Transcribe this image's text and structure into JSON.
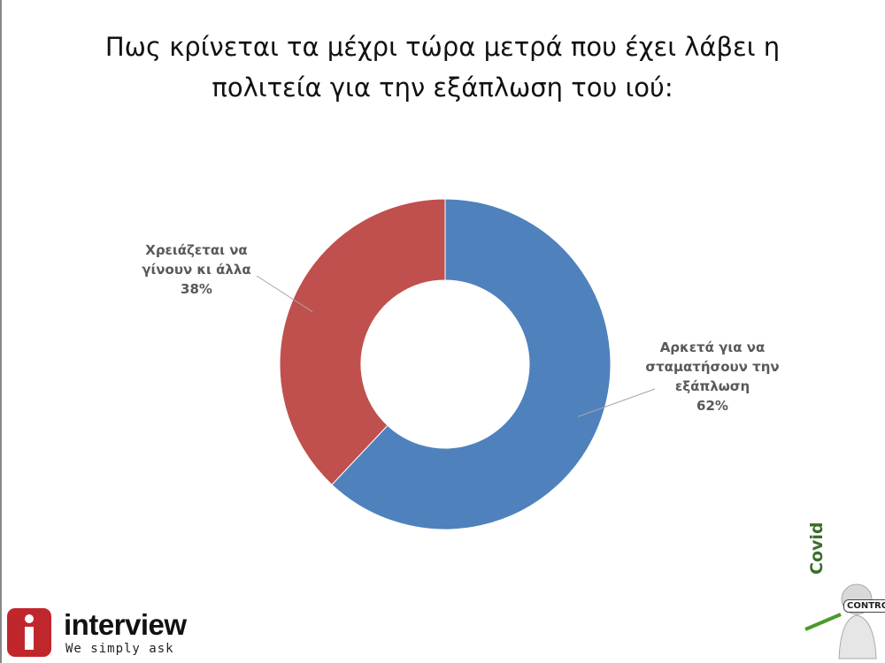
{
  "chart_data": {
    "type": "donut",
    "title": "Πως κρίνεται τα μέχρι τώρα μετρά που έχει λάβει η πολιτεία για την εξάπλωση του ιού:",
    "categories": [
      "Αρκετά για να σταματήσουν την εξάπλωση",
      "Χρειάζεται να γίνουν κι άλλα"
    ],
    "values": [
      62,
      38
    ],
    "value_labels": [
      "62%",
      "38%"
    ],
    "colors": [
      "#4f81bd",
      "#c0504d"
    ]
  },
  "logos": {
    "brand": "interview",
    "slogan": "We simply ask",
    "badge_word": "Covid",
    "badge_sign": "CONTROL"
  }
}
